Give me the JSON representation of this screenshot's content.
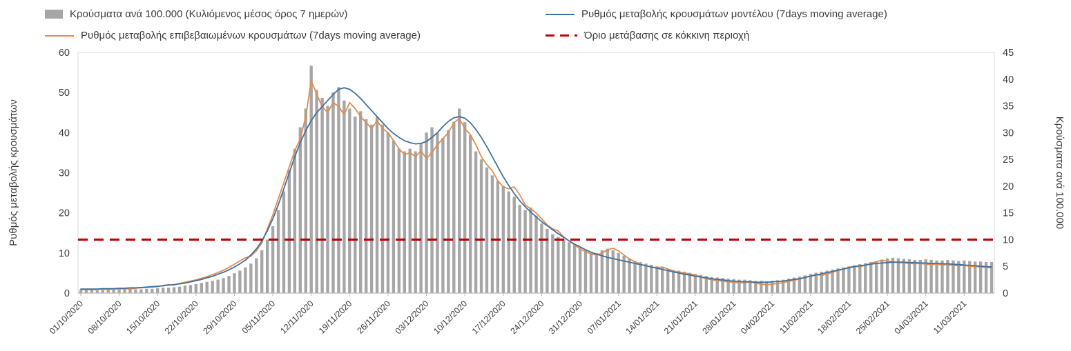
{
  "figure": {
    "background": "#ffffff",
    "text_color": "#3b3b3b"
  },
  "legend": {
    "position": "top",
    "columns": 2
  },
  "chart_data": {
    "type": "bar",
    "combo": "bar+line+line+threshold",
    "start_date": "01/10/2020",
    "x_tick_step_days": 7,
    "x_tick_labels": [
      "01/10/2020",
      "08/10/2020",
      "15/10/2020",
      "22/10/2020",
      "29/10/2020",
      "05/11/2020",
      "12/11/2020",
      "19/11/2020",
      "26/11/2020",
      "03/12/2020",
      "10/12/2020",
      "17/12/2020",
      "24/12/2020",
      "31/12/2020",
      "07/01/2021",
      "14/01/2021",
      "21/01/2021",
      "28/01/2021",
      "04/02/2021",
      "11/02/2021",
      "18/02/2021",
      "25/02/2021",
      "04/03/2021",
      "11/03/2021"
    ],
    "left_axis": {
      "label": "Ρυθμός μεταβολής κρουσμάτων",
      "ticks": [
        0,
        10,
        20,
        30,
        40,
        50,
        60
      ],
      "range": [
        0,
        60
      ]
    },
    "right_axis": {
      "label": "Κρούσματα ανά 100.000",
      "ticks": [
        0,
        5,
        10,
        15,
        20,
        25,
        30,
        35,
        40,
        45
      ],
      "range": [
        0,
        45
      ]
    },
    "grid": "off",
    "series": [
      {
        "name": "Κρούσματα ανά 100.000 (Κυλιόμενος μέσος όρος 7 ημερών)",
        "type": "bar",
        "axis": "right",
        "color": "#a6a6a6",
        "values": [
          0.6,
          0.6,
          0.6,
          0.5,
          0.6,
          0.6,
          0.6,
          0.6,
          0.7,
          0.7,
          0.7,
          0.7,
          0.8,
          0.8,
          0.9,
          1.0,
          1.0,
          1.1,
          1.2,
          1.4,
          1.5,
          1.7,
          1.9,
          2.1,
          2.3,
          2.5,
          2.8,
          3.2,
          3.7,
          4.2,
          4.8,
          5.5,
          6.5,
          8.0,
          10.0,
          12.5,
          15.5,
          19.0,
          23.0,
          27.0,
          31.0,
          34.5,
          42.5,
          38.0,
          36.5,
          35.0,
          37.5,
          38.5,
          36.0,
          34.5,
          33.0,
          34.0,
          32.5,
          31.5,
          33.0,
          31.5,
          30.0,
          28.5,
          27.0,
          26.5,
          27.0,
          26.5,
          28.0,
          30.0,
          31.0,
          30.0,
          29.0,
          30.5,
          32.0,
          34.5,
          32.0,
          29.5,
          26.5,
          25.0,
          23.5,
          22.0,
          21.0,
          20.0,
          19.0,
          18.0,
          16.5,
          15.5,
          16.0,
          14.5,
          13.0,
          12.0,
          11.0,
          10.5,
          10.0,
          9.5,
          9.0,
          8.5,
          8.0,
          7.5,
          7.5,
          8.0,
          8.3,
          8.0,
          7.5,
          7.0,
          6.5,
          6.0,
          5.8,
          5.5,
          5.3,
          5.0,
          4.8,
          4.5,
          4.3,
          4.2,
          4.0,
          3.8,
          3.6,
          3.4,
          3.2,
          3.0,
          2.9,
          2.8,
          2.7,
          2.6,
          2.5,
          2.5,
          2.4,
          2.3,
          2.3,
          2.2,
          2.3,
          2.4,
          2.5,
          2.7,
          2.9,
          3.1,
          3.3,
          3.6,
          3.8,
          4.0,
          4.2,
          4.4,
          4.6,
          4.8,
          5.0,
          5.2,
          5.4,
          5.6,
          5.8,
          6.0,
          6.2,
          6.5,
          6.6,
          6.5,
          6.4,
          6.3,
          6.2,
          6.2,
          6.3,
          6.2,
          6.1,
          6.1,
          6.2,
          6.1,
          6.0,
          6.1,
          6.0,
          5.9,
          5.9,
          5.8,
          5.8
        ]
      },
      {
        "name": "Ρυθμός μεταβολής κρουσμάτων μοντέλου (7days moving average)",
        "type": "line",
        "axis": "left",
        "color": "#41719c",
        "values": [
          1.0,
          1.0,
          1.0,
          1.0,
          1.1,
          1.1,
          1.1,
          1.2,
          1.2,
          1.3,
          1.3,
          1.4,
          1.5,
          1.6,
          1.7,
          1.8,
          2.0,
          2.1,
          2.3,
          2.5,
          2.8,
          3.1,
          3.4,
          3.8,
          4.2,
          4.7,
          5.2,
          5.8,
          6.5,
          7.3,
          8.2,
          9.5,
          11.0,
          13.0,
          15.5,
          18.5,
          22.0,
          26.0,
          30.0,
          34.0,
          37.5,
          40.5,
          43.0,
          45.0,
          46.5,
          48.0,
          49.5,
          50.8,
          51.2,
          50.8,
          49.8,
          48.5,
          47.0,
          45.5,
          44.0,
          42.5,
          41.0,
          39.8,
          38.8,
          38.0,
          37.5,
          37.2,
          37.3,
          37.8,
          38.8,
          40.0,
          41.5,
          42.8,
          43.7,
          44.0,
          43.6,
          42.5,
          40.8,
          38.8,
          36.5,
          34.0,
          31.5,
          29.0,
          26.8,
          24.8,
          23.0,
          21.5,
          20.2,
          19.0,
          17.8,
          16.8,
          15.8,
          14.8,
          13.9,
          13.0,
          12.2,
          11.5,
          10.8,
          10.2,
          9.7,
          9.3,
          8.9,
          8.6,
          8.3,
          8.0,
          7.7,
          7.4,
          7.1,
          6.8,
          6.5,
          6.2,
          5.9,
          5.6,
          5.3,
          5.0,
          4.7,
          4.5,
          4.2,
          4.0,
          3.8,
          3.6,
          3.4,
          3.3,
          3.1,
          3.0,
          2.9,
          2.8,
          2.8,
          2.7,
          2.7,
          2.7,
          2.8,
          2.9,
          3.0,
          3.2,
          3.4,
          3.6,
          3.9,
          4.2,
          4.5,
          4.8,
          5.1,
          5.4,
          5.7,
          6.0,
          6.3,
          6.6,
          6.8,
          7.0,
          7.2,
          7.4,
          7.5,
          7.6,
          7.7,
          7.7,
          7.7,
          7.6,
          7.6,
          7.5,
          7.5,
          7.4,
          7.4,
          7.3,
          7.3,
          7.2,
          7.1,
          7.0,
          6.9,
          6.8,
          6.7,
          6.6,
          6.5
        ]
      },
      {
        "name": "Ρυθμός μεταβολής επιβεβαιωμένων κρουσμάτων (7days moving average)",
        "type": "line",
        "axis": "left",
        "color": "#e08c50",
        "values": [
          0.8,
          0.9,
          0.8,
          0.9,
          1.0,
          0.9,
          1.0,
          1.0,
          1.1,
          1.0,
          1.2,
          1.3,
          1.4,
          1.5,
          1.6,
          1.9,
          2.1,
          2.0,
          2.4,
          2.7,
          3.0,
          3.3,
          3.7,
          4.1,
          4.6,
          5.1,
          5.7,
          6.4,
          7.2,
          8.0,
          8.8,
          9.2,
          10.5,
          12.5,
          16.0,
          19.5,
          23.5,
          27.5,
          31.5,
          35.5,
          38.5,
          44.0,
          53.0,
          49.5,
          46.5,
          45.0,
          47.5,
          46.5,
          44.5,
          47.5,
          46.0,
          44.0,
          42.5,
          41.0,
          43.0,
          41.0,
          40.0,
          38.0,
          36.0,
          34.5,
          35.0,
          34.0,
          35.5,
          33.5,
          35.0,
          37.0,
          38.5,
          40.0,
          42.5,
          43.5,
          41.0,
          39.5,
          37.0,
          34.0,
          32.0,
          30.5,
          28.0,
          26.5,
          26.0,
          26.5,
          24.5,
          22.0,
          21.0,
          20.0,
          18.5,
          17.0,
          16.0,
          15.5,
          14.0,
          13.0,
          12.0,
          11.0,
          10.3,
          9.8,
          9.5,
          10.0,
          10.8,
          11.2,
          10.5,
          9.5,
          8.5,
          7.8,
          7.2,
          6.8,
          6.5,
          6.3,
          6.5,
          6.0,
          5.5,
          5.2,
          5.0,
          4.8,
          4.5,
          4.0,
          3.6,
          3.3,
          3.1,
          3.0,
          2.8,
          2.7,
          2.5,
          2.6,
          2.8,
          2.5,
          2.2,
          2.1,
          2.2,
          2.4,
          2.6,
          2.9,
          3.2,
          3.5,
          3.9,
          4.3,
          4.6,
          4.4,
          4.7,
          5.2,
          5.6,
          6.0,
          6.4,
          6.7,
          6.5,
          7.0,
          7.4,
          7.8,
          8.2,
          8.0,
          7.8,
          7.6,
          7.5,
          7.4,
          7.3,
          7.4,
          7.2,
          7.1,
          7.2,
          7.0,
          7.1,
          6.9,
          6.8,
          6.9,
          6.7,
          6.6,
          6.5,
          6.4,
          6.3
        ]
      },
      {
        "name": "Όριο μετάβασης σε κόκκινη περιοχή",
        "type": "hline",
        "axis": "right",
        "color": "#c00000",
        "value": 10
      }
    ]
  }
}
